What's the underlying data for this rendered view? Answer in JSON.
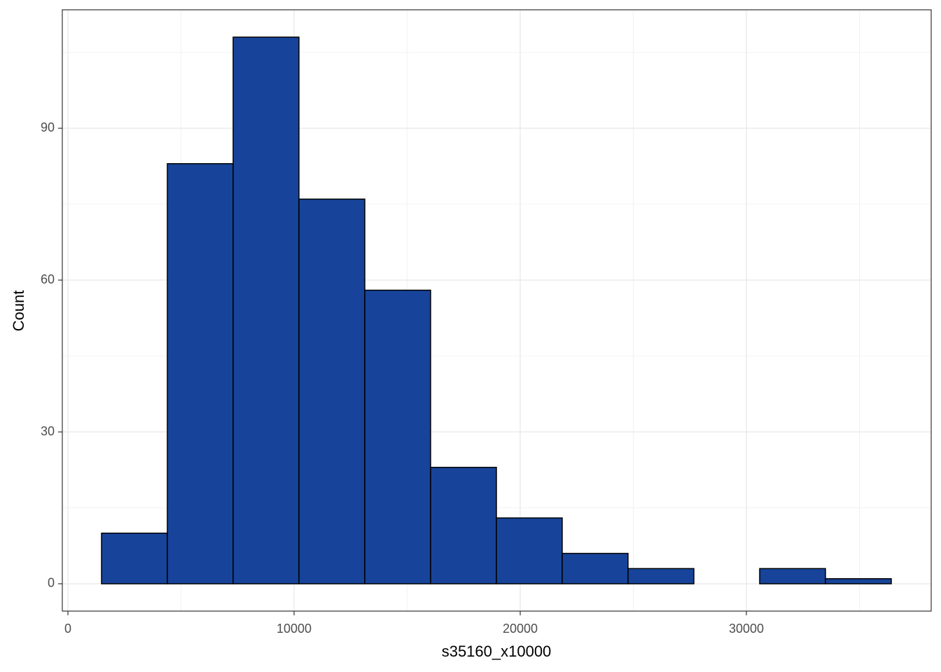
{
  "chart_data": {
    "type": "histogram",
    "x_label": "s35160_x10000",
    "y_label": "Count",
    "bins": [
      1486,
      4396,
      7306,
      10216,
      13127,
      16037,
      18947,
      21857,
      24767,
      27678,
      30588,
      33498,
      36408
    ],
    "values": [
      10,
      83,
      108,
      76,
      58,
      23,
      13,
      6,
      3,
      0,
      3,
      1
    ],
    "color": "#17449a",
    "edge_color": "#000000",
    "xlim": [
      -248,
      38173
    ],
    "ylim": [
      -5.4,
      113.4
    ],
    "xticks": [
      0,
      10000,
      20000,
      30000
    ],
    "yticks": [
      0,
      30,
      60,
      90
    ],
    "x_minor_grid": [
      5000,
      15000,
      25000,
      35000
    ],
    "y_minor_grid": [
      15,
      45,
      75,
      105
    ],
    "grid": true
  }
}
